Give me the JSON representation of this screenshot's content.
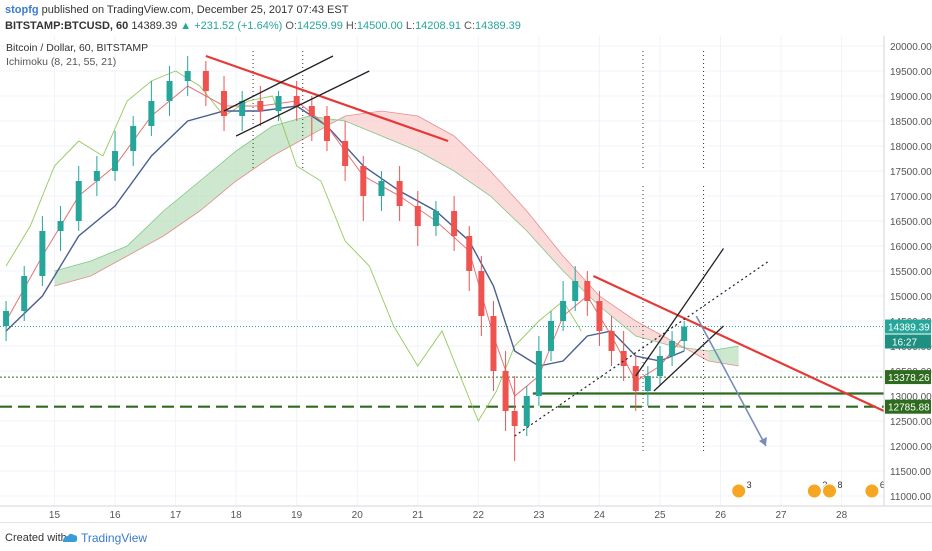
{
  "header": {
    "username": "stopfg",
    "published_text": "published on TradingView.com, December 25, 2017 07:43 EST",
    "symbol": "BITSTAMP:BTCUSD, 60",
    "last": "14389.39",
    "change": "▲ +231.52 (+1.64%)",
    "o_label": "O:",
    "o_value": "14259.99",
    "h_label": "H:",
    "h_value": "14500.00",
    "l_label": "L:",
    "l_value": "14208.91",
    "c_label": "C:",
    "c_value": "14389.39"
  },
  "chart_title": "Bitcoin / Dollar, 60, BITSTAMP",
  "indicator_label": "Ichimoku (8, 21, 55, 21)",
  "footer": {
    "created_with": "Created with",
    "brand": "TradingView"
  },
  "colors": {
    "up_candle": "#26a69a",
    "down_candle": "#ef5350",
    "cloud_bull": "#a5d6a7",
    "cloud_bear": "#f8bbbb",
    "kijun": "#4a5f8f",
    "tenkan": "#e57373",
    "chikou": "#8bc34a",
    "trend_red": "#e53935",
    "support_green": "#2e6b1f",
    "arrow_blue": "#7a8cb8",
    "price_tag": "#26a69a",
    "level_tag": "#2e6b1f"
  },
  "chart_data": {
    "type": "candlestick",
    "title": "Bitcoin / Dollar, 60, BITSTAMP",
    "y_ticks": [
      20000,
      19500,
      19000,
      18500,
      18000,
      17500,
      17000,
      16500,
      16000,
      15500,
      15000,
      14500,
      14000,
      13500,
      13000,
      12500,
      12000,
      11500,
      11000
    ],
    "y_tick_labels": [
      "20000.00",
      "19500.00",
      "19000.00",
      "18500.00",
      "18000.00",
      "17500.00",
      "17000.00",
      "16500.00",
      "16000.00",
      "15500.00",
      "15000.00",
      "14500.00",
      "14000.00",
      "13500.00",
      "13000.00",
      "12500.00",
      "12000.00",
      "11500.00",
      "11000.00"
    ],
    "ylim": [
      10800,
      20200
    ],
    "x_ticks": [
      15,
      16,
      17,
      18,
      19,
      20,
      21,
      22,
      23,
      24,
      25,
      26,
      27,
      28
    ],
    "x_tick_labels": [
      "15",
      "16",
      "17",
      "18",
      "19",
      "20",
      "21",
      "22",
      "23",
      "24",
      "25",
      "26",
      "27",
      "28"
    ],
    "xlim": [
      14.1,
      28.7
    ],
    "candles": [
      {
        "x": 14.2,
        "o": 14400,
        "h": 14900,
        "c": 14700,
        "l": 14100
      },
      {
        "x": 14.5,
        "o": 14700,
        "h": 15600,
        "c": 15400,
        "l": 14500
      },
      {
        "x": 14.8,
        "o": 15400,
        "h": 16600,
        "c": 16300,
        "l": 15200
      },
      {
        "x": 15.1,
        "o": 16300,
        "h": 16800,
        "c": 16500,
        "l": 15900
      },
      {
        "x": 15.4,
        "o": 16500,
        "h": 17600,
        "c": 17300,
        "l": 16300
      },
      {
        "x": 15.7,
        "o": 17300,
        "h": 17800,
        "c": 17500,
        "l": 17000
      },
      {
        "x": 16.0,
        "o": 17500,
        "h": 18300,
        "c": 17900,
        "l": 17300
      },
      {
        "x": 16.3,
        "o": 17900,
        "h": 18600,
        "c": 18400,
        "l": 17600
      },
      {
        "x": 16.6,
        "o": 18400,
        "h": 19300,
        "c": 18900,
        "l": 18200
      },
      {
        "x": 16.9,
        "o": 18900,
        "h": 19600,
        "c": 19300,
        "l": 18600
      },
      {
        "x": 17.2,
        "o": 19300,
        "h": 19800,
        "c": 19500,
        "l": 19000
      },
      {
        "x": 17.5,
        "o": 19500,
        "h": 19700,
        "c": 19100,
        "l": 18800
      },
      {
        "x": 17.8,
        "o": 19100,
        "h": 19400,
        "c": 18600,
        "l": 18300
      },
      {
        "x": 18.1,
        "o": 18600,
        "h": 19100,
        "c": 18900,
        "l": 18300
      },
      {
        "x": 18.4,
        "o": 18900,
        "h": 19200,
        "c": 18700,
        "l": 18400
      },
      {
        "x": 18.7,
        "o": 18700,
        "h": 19100,
        "c": 19000,
        "l": 18500
      },
      {
        "x": 19.0,
        "o": 19000,
        "h": 19300,
        "c": 18800,
        "l": 18500
      },
      {
        "x": 19.25,
        "o": 18800,
        "h": 19000,
        "c": 18600,
        "l": 18100
      },
      {
        "x": 19.5,
        "o": 18600,
        "h": 18800,
        "c": 18100,
        "l": 17900
      },
      {
        "x": 19.8,
        "o": 18100,
        "h": 18500,
        "c": 17600,
        "l": 17300
      },
      {
        "x": 20.1,
        "o": 17600,
        "h": 17800,
        "c": 17000,
        "l": 16500
      },
      {
        "x": 20.4,
        "o": 17000,
        "h": 17500,
        "c": 17300,
        "l": 16700
      },
      {
        "x": 20.7,
        "o": 17300,
        "h": 17600,
        "c": 16800,
        "l": 16500
      },
      {
        "x": 21.0,
        "o": 16800,
        "h": 17100,
        "c": 16400,
        "l": 16000
      },
      {
        "x": 21.3,
        "o": 16400,
        "h": 16900,
        "c": 16700,
        "l": 16200
      },
      {
        "x": 21.6,
        "o": 16700,
        "h": 17000,
        "c": 16200,
        "l": 15900
      },
      {
        "x": 21.85,
        "o": 16200,
        "h": 16400,
        "c": 15500,
        "l": 15100
      },
      {
        "x": 22.05,
        "o": 15500,
        "h": 15800,
        "c": 14600,
        "l": 14200
      },
      {
        "x": 22.25,
        "o": 14600,
        "h": 14900,
        "c": 13500,
        "l": 13100
      },
      {
        "x": 22.45,
        "o": 13500,
        "h": 13900,
        "c": 12700,
        "l": 12300
      },
      {
        "x": 22.6,
        "o": 12700,
        "h": 13400,
        "c": 12400,
        "l": 11700
      },
      {
        "x": 22.8,
        "o": 12400,
        "h": 13200,
        "c": 13000,
        "l": 12200
      },
      {
        "x": 23.0,
        "o": 13000,
        "h": 14200,
        "c": 13900,
        "l": 12800
      },
      {
        "x": 23.2,
        "o": 13900,
        "h": 14700,
        "c": 14500,
        "l": 13700
      },
      {
        "x": 23.4,
        "o": 14500,
        "h": 15300,
        "c": 14900,
        "l": 14300
      },
      {
        "x": 23.6,
        "o": 14900,
        "h": 15600,
        "c": 15300,
        "l": 14700
      },
      {
        "x": 23.8,
        "o": 15300,
        "h": 15500,
        "c": 14900,
        "l": 14600
      },
      {
        "x": 24.0,
        "o": 14900,
        "h": 15100,
        "c": 14300,
        "l": 14000
      },
      {
        "x": 24.2,
        "o": 14300,
        "h": 14600,
        "c": 13900,
        "l": 13600
      },
      {
        "x": 24.4,
        "o": 13900,
        "h": 14300,
        "c": 13600,
        "l": 13300
      },
      {
        "x": 24.6,
        "o": 13600,
        "h": 13800,
        "c": 13100,
        "l": 12700
      },
      {
        "x": 24.8,
        "o": 13100,
        "h": 13600,
        "c": 13400,
        "l": 12800
      },
      {
        "x": 25.0,
        "o": 13400,
        "h": 14000,
        "c": 13800,
        "l": 13200
      },
      {
        "x": 25.2,
        "o": 13800,
        "h": 14300,
        "c": 14100,
        "l": 13600
      },
      {
        "x": 25.4,
        "o": 14100,
        "h": 14500,
        "c": 14389,
        "l": 13900
      }
    ],
    "ichimoku": {
      "tenkan": [
        [
          14.2,
          14500
        ],
        [
          14.8,
          15800
        ],
        [
          15.4,
          17000
        ],
        [
          16.0,
          17600
        ],
        [
          16.6,
          18600
        ],
        [
          17.2,
          19200
        ],
        [
          17.8,
          18800
        ],
        [
          18.4,
          18800
        ],
        [
          19.0,
          18900
        ],
        [
          19.5,
          18400
        ],
        [
          20.1,
          17400
        ],
        [
          20.7,
          17000
        ],
        [
          21.3,
          16500
        ],
        [
          21.85,
          15900
        ],
        [
          22.25,
          14200
        ],
        [
          22.6,
          13000
        ],
        [
          23.0,
          13400
        ],
        [
          23.4,
          14600
        ],
        [
          23.8,
          15000
        ],
        [
          24.2,
          14200
        ],
        [
          24.6,
          13300
        ],
        [
          25.0,
          13600
        ],
        [
          25.4,
          14200
        ]
      ],
      "kijun": [
        [
          14.2,
          14300
        ],
        [
          14.8,
          15000
        ],
        [
          15.4,
          16200
        ],
        [
          16.0,
          16800
        ],
        [
          16.6,
          17800
        ],
        [
          17.2,
          18500
        ],
        [
          17.8,
          18700
        ],
        [
          18.4,
          18700
        ],
        [
          19.0,
          18800
        ],
        [
          19.5,
          18400
        ],
        [
          20.1,
          17600
        ],
        [
          20.7,
          17100
        ],
        [
          21.3,
          16700
        ],
        [
          21.85,
          16100
        ],
        [
          22.25,
          15200
        ],
        [
          22.6,
          13900
        ],
        [
          23.0,
          13600
        ],
        [
          23.4,
          13700
        ],
        [
          23.8,
          14200
        ],
        [
          24.2,
          14300
        ],
        [
          24.6,
          13800
        ],
        [
          25.0,
          13700
        ],
        [
          25.4,
          13900
        ]
      ],
      "cloud_a": [
        [
          15.0,
          15500
        ],
        [
          15.6,
          15700
        ],
        [
          16.2,
          16000
        ],
        [
          16.8,
          16700
        ],
        [
          17.4,
          17300
        ],
        [
          18.0,
          17900
        ],
        [
          18.6,
          18400
        ],
        [
          19.2,
          18600
        ],
        [
          19.8,
          18500
        ],
        [
          20.4,
          18200
        ],
        [
          21.0,
          17900
        ],
        [
          21.6,
          17500
        ],
        [
          22.2,
          17000
        ],
        [
          22.8,
          16300
        ],
        [
          23.4,
          15500
        ],
        [
          24.0,
          14800
        ],
        [
          24.6,
          14200
        ],
        [
          25.2,
          14000
        ],
        [
          25.8,
          13900
        ],
        [
          26.3,
          14000
        ]
      ],
      "cloud_b": [
        [
          15.0,
          15200
        ],
        [
          15.6,
          15400
        ],
        [
          16.2,
          15800
        ],
        [
          16.8,
          16200
        ],
        [
          17.4,
          16700
        ],
        [
          18.0,
          17300
        ],
        [
          18.6,
          17800
        ],
        [
          19.2,
          18200
        ],
        [
          19.8,
          18600
        ],
        [
          20.4,
          18700
        ],
        [
          21.0,
          18600
        ],
        [
          21.6,
          18200
        ],
        [
          22.2,
          17500
        ],
        [
          22.8,
          16700
        ],
        [
          23.4,
          15800
        ],
        [
          24.0,
          15000
        ],
        [
          24.6,
          14500
        ],
        [
          25.2,
          14100
        ],
        [
          25.8,
          13700
        ],
        [
          26.3,
          13600
        ]
      ],
      "chikou": [
        [
          14.2,
          15600
        ],
        [
          14.6,
          16400
        ],
        [
          15.0,
          17600
        ],
        [
          15.4,
          18100
        ],
        [
          15.8,
          17800
        ],
        [
          16.2,
          18900
        ],
        [
          16.6,
          19300
        ],
        [
          17.0,
          19500
        ],
        [
          17.4,
          19200
        ],
        [
          17.8,
          18600
        ],
        [
          18.2,
          18900
        ],
        [
          18.6,
          19000
        ],
        [
          19.0,
          17600
        ],
        [
          19.4,
          17300
        ],
        [
          19.8,
          16100
        ],
        [
          20.2,
          15600
        ],
        [
          20.6,
          14400
        ],
        [
          21.0,
          13600
        ],
        [
          21.4,
          14300
        ],
        [
          21.7,
          13400
        ],
        [
          22.0,
          12500
        ],
        [
          22.3,
          13100
        ],
        [
          22.6,
          14000
        ],
        [
          23.0,
          14500
        ],
        [
          23.4,
          14900
        ],
        [
          23.7,
          14300
        ]
      ]
    },
    "horizontal_levels": [
      {
        "value": 13378.26,
        "label": "13378.26",
        "style": "dotted",
        "color": "#2e6b1f"
      },
      {
        "value": 12785.88,
        "label": "12785.88",
        "style": "dashed",
        "color": "#2e6b1f"
      },
      {
        "value": 13050,
        "label": "",
        "style": "solid",
        "color": "#2e6b1f",
        "x_from": 22.9
      }
    ],
    "current_price": {
      "value": 14389.39,
      "label": "14389.39",
      "timer": "16:27"
    },
    "trendlines": [
      {
        "color": "#e53935",
        "width": 2.2,
        "style": "solid",
        "points": [
          [
            17.5,
            19800
          ],
          [
            21.5,
            18100
          ]
        ]
      },
      {
        "color": "#e53935",
        "width": 2.2,
        "style": "solid",
        "points": [
          [
            23.9,
            15400
          ],
          [
            28.7,
            12700
          ]
        ]
      },
      {
        "color": "#222222",
        "width": 1.3,
        "style": "solid",
        "points": [
          [
            17.8,
            18700
          ],
          [
            19.6,
            19800
          ]
        ]
      },
      {
        "color": "#222222",
        "width": 1.3,
        "style": "solid",
        "points": [
          [
            18.0,
            18200
          ],
          [
            20.2,
            19500
          ]
        ]
      },
      {
        "color": "#222222",
        "width": 1.3,
        "style": "solid",
        "points": [
          [
            24.6,
            13400
          ],
          [
            26.05,
            15950
          ]
        ]
      },
      {
        "color": "#222222",
        "width": 1.3,
        "style": "solid",
        "points": [
          [
            24.9,
            13100
          ],
          [
            26.05,
            14400
          ]
        ]
      },
      {
        "color": "#222222",
        "width": 1.2,
        "style": "dotted",
        "points": [
          [
            22.6,
            12200
          ],
          [
            26.8,
            15700
          ]
        ]
      },
      {
        "color": "#7a8cb8",
        "width": 1.6,
        "style": "solid",
        "points": [
          [
            25.6,
            14600
          ],
          [
            26.75,
            12000
          ]
        ]
      }
    ],
    "vertical_markers": [
      18.28,
      19.1,
      24.72,
      25.72
    ],
    "event_icons": [
      {
        "x": 26.3,
        "label": "3"
      },
      {
        "x": 27.55,
        "label": "2"
      },
      {
        "x": 27.8,
        "label": "8"
      },
      {
        "x": 28.5,
        "label": "6"
      }
    ]
  }
}
